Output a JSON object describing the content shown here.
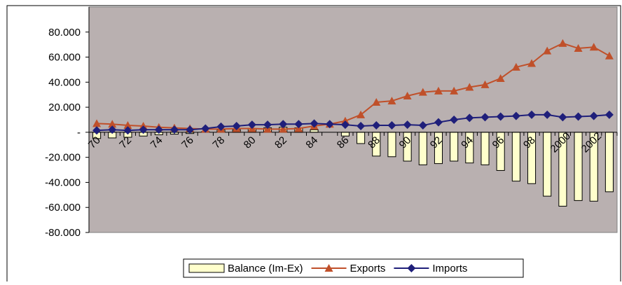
{
  "chart_data": {
    "type": "bar-line",
    "categories": [
      "70",
      null,
      "72",
      null,
      "74",
      null,
      "76",
      null,
      "78",
      null,
      "80",
      null,
      "82",
      null,
      "84",
      null,
      "86",
      null,
      "88",
      null,
      "90",
      null,
      "92",
      null,
      "94",
      null,
      "96",
      null,
      "98",
      null,
      "2000",
      null,
      "2002",
      null
    ],
    "series": [
      {
        "name": "Balance (Im-Ex)",
        "type": "bar",
        "color": "#ffffcc",
        "values": [
          -5000,
          -4500,
          -4000,
          -3000,
          -2000,
          -1500,
          -1000,
          500,
          2000,
          2000,
          3000,
          3500,
          4000,
          3500,
          2000,
          0,
          -3000,
          -9000,
          -19000,
          -19500,
          -23000,
          -26000,
          -25000,
          -23000,
          -24500,
          -26000,
          -30500,
          -39000,
          -41000,
          -51000,
          -59000,
          -54500,
          -55000,
          -47500
        ]
      },
      {
        "name": "Exports",
        "type": "line",
        "marker": "triangle",
        "color": "#c0502a",
        "values": [
          7000,
          6500,
          5500,
          5000,
          4000,
          3500,
          3000,
          2500,
          2500,
          3000,
          3000,
          2500,
          2500,
          3000,
          5000,
          6500,
          9000,
          14000,
          24000,
          25000,
          29000,
          32000,
          33000,
          33000,
          36000,
          38000,
          43000,
          52000,
          55000,
          65000,
          71000,
          67000,
          68000,
          61000
        ]
      },
      {
        "name": "Imports",
        "type": "line",
        "marker": "diamond",
        "color": "#1f1f7a",
        "values": [
          1500,
          2000,
          1500,
          2000,
          2000,
          2000,
          2000,
          3000,
          4500,
          5000,
          6000,
          6000,
          6500,
          6500,
          7000,
          6500,
          6000,
          5000,
          5500,
          5500,
          6000,
          5500,
          8000,
          10000,
          11500,
          12000,
          12500,
          13000,
          14000,
          14000,
          12000,
          12500,
          13000,
          14000
        ]
      }
    ],
    "ylim": [
      -80000,
      100000
    ],
    "yticks": [
      {
        "value": -80000,
        "label": "-80.000"
      },
      {
        "value": -60000,
        "label": "-60.000"
      },
      {
        "value": -40000,
        "label": "-40.000"
      },
      {
        "value": -20000,
        "label": "-20.000"
      },
      {
        "value": 0,
        "label": "-"
      },
      {
        "value": 20000,
        "label": "20.000"
      },
      {
        "value": 40000,
        "label": "40.000"
      },
      {
        "value": 60000,
        "label": "60.000"
      },
      {
        "value": 80000,
        "label": "80.000"
      }
    ],
    "plot_background": "#b9b0b0",
    "legend": "bottom"
  }
}
